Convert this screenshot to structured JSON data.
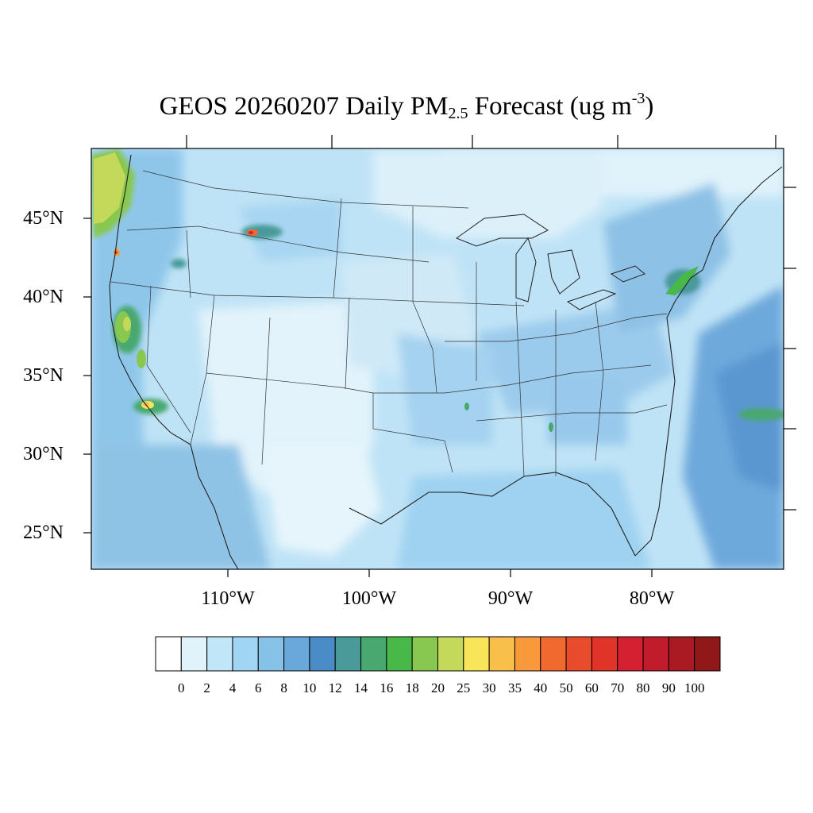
{
  "title": {
    "prefix": "GEOS 20260207 Daily PM",
    "subscript": "2.5",
    "middle": " Forecast (ug m",
    "superscript": "-3",
    "suffix": ")"
  },
  "map": {
    "region": "Contiguous United States",
    "projection": "Lambert Conformal",
    "lat_labels": [
      "45°N",
      "40°N",
      "35°N",
      "30°N",
      "25°N"
    ],
    "lon_labels": [
      "110°W",
      "100°W",
      "90°W",
      "80°W"
    ],
    "background_color": "#cde8f7",
    "hotspots": [
      {
        "location": "Pacific Northwest coast (OR/WA)",
        "level": "20-30",
        "color": "#c4d959"
      },
      {
        "location": "Willamette Valley, OR",
        "level": "30-50",
        "color": "#f08030"
      },
      {
        "location": "SW Montana",
        "level": "50-90",
        "color": "#d42030"
      },
      {
        "location": "Central Valley, CA",
        "level": "16-25",
        "color": "#88c850"
      },
      {
        "location": "Los Angeles basin, CA",
        "level": "25-40",
        "color": "#f7e55a"
      },
      {
        "location": "New York City / NJ corridor",
        "level": "14-18",
        "color": "#4db848"
      },
      {
        "location": "Offshore SE of Cape Hatteras",
        "level": "14-18",
        "color": "#6fbf5f"
      }
    ]
  },
  "colorbar": {
    "levels": [
      "0",
      "2",
      "4",
      "6",
      "8",
      "10",
      "12",
      "14",
      "16",
      "18",
      "20",
      "25",
      "30",
      "35",
      "40",
      "50",
      "60",
      "70",
      "80",
      "90",
      "100"
    ],
    "colors": [
      "#ffffff",
      "#e0f3fb",
      "#c0e6f7",
      "#a0d6f4",
      "#86c1e8",
      "#6aa8dc",
      "#4a8cc8",
      "#4a9a9a",
      "#48a870",
      "#48b848",
      "#88c850",
      "#c4d959",
      "#f8e55a",
      "#f8c04a",
      "#f89a3c",
      "#f06a30",
      "#e84c2c",
      "#e03428",
      "#d42030",
      "#c01c2c",
      "#aa1a22",
      "#901818"
    ]
  }
}
